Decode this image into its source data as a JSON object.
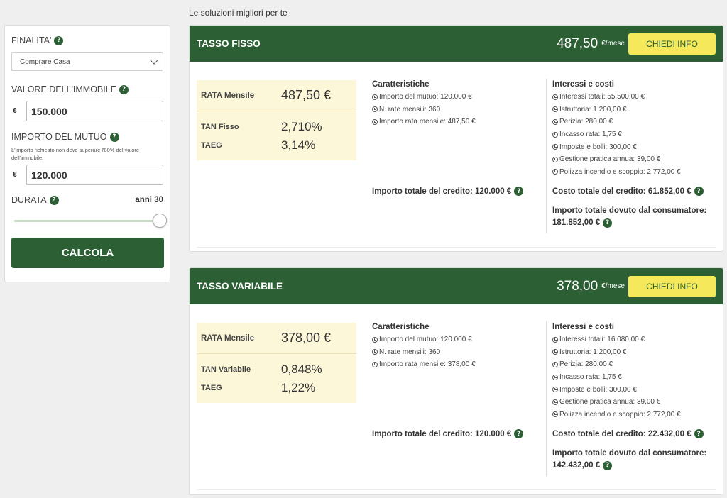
{
  "sidebar": {
    "finalita_label": "FINALITA'",
    "finalita_value": "Comprare Casa",
    "valore_label": "VALORE DELL'IMMOBILE",
    "valore_currency": "€",
    "valore_value": "150.000",
    "importo_label": "IMPORTO DEL MUTUO",
    "importo_hint": "L'importo richiesto non deve superare l'80% del valore dell'immobile.",
    "importo_currency": "€",
    "importo_value": "120.000",
    "durata_label": "DURATA",
    "durata_value": "anni 30",
    "durata_slider_fraction": 1.0,
    "calcola_label": "CALCOLA"
  },
  "heading": "Le soluzioni migliori per te",
  "offers": [
    {
      "title": "TASSO FISSO",
      "price": "487,50",
      "per": "€/mese",
      "info_button": "CHIEDI INFO",
      "rata_label": "RATA Mensile",
      "rata_value": "487,50 €",
      "tan_label": "TAN Fisso",
      "tan_value": "2,710%",
      "taeg_label": "TAEG",
      "taeg_value": "3,14%",
      "caratteristiche_title": "Caratteristiche",
      "caratteristiche": [
        "Importo del mutuo: 120.000 €",
        "N. rate mensili: 360",
        "Importo rata mensile: 487,50 €"
      ],
      "interessi_title": "Interessi e costi",
      "interessi": [
        "Interessi totali: 55.500,00 €",
        "Istruttoria: 1.200,00 €",
        "Perizia: 280,00 €",
        "Incasso rata: 1,75 €",
        "Imposte e bolli: 300,00 €",
        "Gestione pratica annua: 39,00 €",
        "Polizza incendio e scoppio: 2.772,00 €"
      ],
      "totale_credito": "Importo totale del credito: 120.000 €",
      "costo_totale": "Costo totale del credito: 61.852,00 €",
      "dovuto_label": "Importo totale dovuto dal consumatore:",
      "dovuto_value": "181.852,00 €"
    },
    {
      "title": "TASSO VARIABILE",
      "price": "378,00",
      "per": "€/mese",
      "info_button": "CHIEDI INFO",
      "rata_label": "RATA Mensile",
      "rata_value": "378,00 €",
      "tan_label": "TAN Variabile",
      "tan_value": "0,848%",
      "taeg_label": "TAEG",
      "taeg_value": "1,22%",
      "caratteristiche_title": "Caratteristiche",
      "caratteristiche": [
        "Importo del mutuo: 120.000 €",
        "N. rate mensili: 360",
        "Importo rata mensile: 378,00 €"
      ],
      "interessi_title": "Interessi e costi",
      "interessi": [
        "Interessi totali: 16.080,00 €",
        "Istruttoria: 1.200,00 €",
        "Perizia: 280,00 €",
        "Incasso rata: 1,75 €",
        "Imposte e bolli: 300,00 €",
        "Gestione pratica annua: 39,00 €",
        "Polizza incendio e scoppio: 2.772,00 €"
      ],
      "totale_credito": "Importo totale del credito: 120.000 €",
      "costo_totale": "Costo totale del credito: 22.432,00 €",
      "dovuto_label": "Importo totale dovuto dal consumatore:",
      "dovuto_value": "142.432,00 €"
    }
  ],
  "colors": {
    "brand_green": "#2c5f34",
    "button_yellow": "#f5e85a",
    "rate_box_bg": "#fcf7d9"
  },
  "icons": {
    "help": "question-circle-icon",
    "list_bullet": "clock-icon",
    "dropdown": "chevron-down-icon"
  }
}
